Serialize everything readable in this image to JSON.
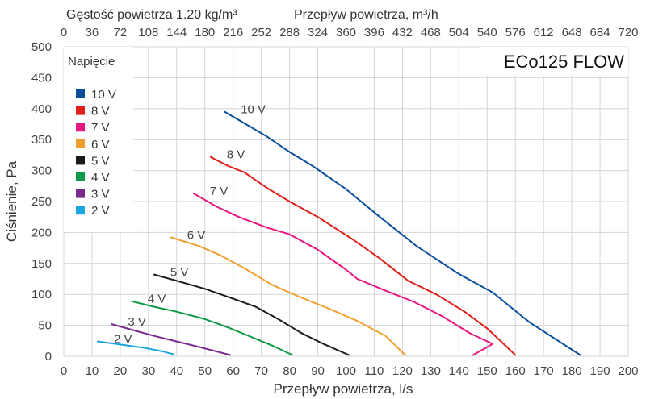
{
  "chart_data": {
    "type": "line",
    "title": "ECo125 FLOW",
    "xlabel": "Przepływ powietrza, l/s",
    "ylabel": "Ciśnienie, Pa",
    "x2label": "Przepływ powietrza, m³/h",
    "density_note": "Gęstość powietrza 1.20 kg/m³",
    "xlim": [
      0,
      200
    ],
    "ylim": [
      0,
      500
    ],
    "x2lim": [
      0,
      720
    ],
    "xticks": [
      "0",
      "10",
      "20",
      "30",
      "40",
      "50",
      "60",
      "70",
      "80",
      "90",
      "100",
      "110",
      "120",
      "130",
      "140",
      "150",
      "160",
      "170",
      "180",
      "190",
      "200"
    ],
    "yticks": [
      "0",
      "50",
      "100",
      "150",
      "200",
      "250",
      "300",
      "350",
      "400",
      "450",
      "500"
    ],
    "x2ticks": [
      "0",
      "36",
      "72",
      "108",
      "144",
      "180",
      "216",
      "252",
      "288",
      "324",
      "360",
      "396",
      "432",
      "468",
      "504",
      "540",
      "576",
      "612",
      "648",
      "684",
      "720"
    ],
    "grid": true,
    "legend": {
      "title": "Napięcie",
      "placement": "top-left"
    },
    "series": [
      {
        "name": "10 V",
        "color": "#0b4f9c",
        "label": "10 V",
        "points": [
          [
            57,
            395
          ],
          [
            72,
            355
          ],
          [
            80,
            330
          ],
          [
            88,
            308
          ],
          [
            100,
            270
          ],
          [
            112,
            225
          ],
          [
            125,
            178
          ],
          [
            140,
            133
          ],
          [
            152,
            103
          ],
          [
            165,
            55
          ],
          [
            183,
            2
          ]
        ]
      },
      {
        "name": "8 V",
        "color": "#e0201b",
        "label": "8 V",
        "points": [
          [
            52,
            322
          ],
          [
            58,
            308
          ],
          [
            64,
            297
          ],
          [
            72,
            272
          ],
          [
            80,
            250
          ],
          [
            90,
            225
          ],
          [
            102,
            190
          ],
          [
            112,
            158
          ],
          [
            122,
            122
          ],
          [
            132,
            100
          ],
          [
            142,
            72
          ],
          [
            150,
            45
          ],
          [
            160,
            2
          ]
        ]
      },
      {
        "name": "7 V",
        "color": "#e6177e",
        "label": "7 V",
        "points": [
          [
            46,
            263
          ],
          [
            54,
            242
          ],
          [
            62,
            225
          ],
          [
            72,
            208
          ],
          [
            80,
            197
          ],
          [
            90,
            172
          ],
          [
            100,
            140
          ],
          [
            104,
            125
          ],
          [
            114,
            106
          ],
          [
            124,
            88
          ],
          [
            134,
            65
          ],
          [
            144,
            37
          ],
          [
            152,
            20
          ],
          [
            145,
            2
          ]
        ]
      },
      {
        "name": "6 V",
        "color": "#f0a030",
        "label": "6 V",
        "points": [
          [
            38,
            192
          ],
          [
            48,
            178
          ],
          [
            56,
            162
          ],
          [
            64,
            142
          ],
          [
            74,
            115
          ],
          [
            84,
            95
          ],
          [
            94,
            77
          ],
          [
            104,
            57
          ],
          [
            114,
            33
          ],
          [
            121,
            2
          ]
        ]
      },
      {
        "name": "5 V",
        "color": "#1a1a1a",
        "label": "5 V",
        "points": [
          [
            32,
            132
          ],
          [
            40,
            122
          ],
          [
            50,
            109
          ],
          [
            60,
            93
          ],
          [
            68,
            80
          ],
          [
            76,
            60
          ],
          [
            84,
            38
          ],
          [
            92,
            20
          ],
          [
            101,
            2
          ]
        ]
      },
      {
        "name": "4 V",
        "color": "#0e9a48",
        "label": "4 V",
        "points": [
          [
            24,
            89
          ],
          [
            32,
            80
          ],
          [
            40,
            72
          ],
          [
            50,
            60
          ],
          [
            58,
            47
          ],
          [
            66,
            32
          ],
          [
            74,
            17
          ],
          [
            81,
            2
          ]
        ]
      },
      {
        "name": "3 V",
        "color": "#7b2a8e",
        "label": "3 V",
        "points": [
          [
            17,
            52
          ],
          [
            24,
            43
          ],
          [
            32,
            33
          ],
          [
            40,
            24
          ],
          [
            48,
            15
          ],
          [
            54,
            8
          ],
          [
            59,
            2
          ]
        ]
      },
      {
        "name": "2 V",
        "color": "#1ba6e0",
        "label": "2 V",
        "points": [
          [
            12,
            24
          ],
          [
            20,
            19
          ],
          [
            28,
            14
          ],
          [
            35,
            8
          ],
          [
            39,
            3
          ]
        ]
      }
    ]
  }
}
